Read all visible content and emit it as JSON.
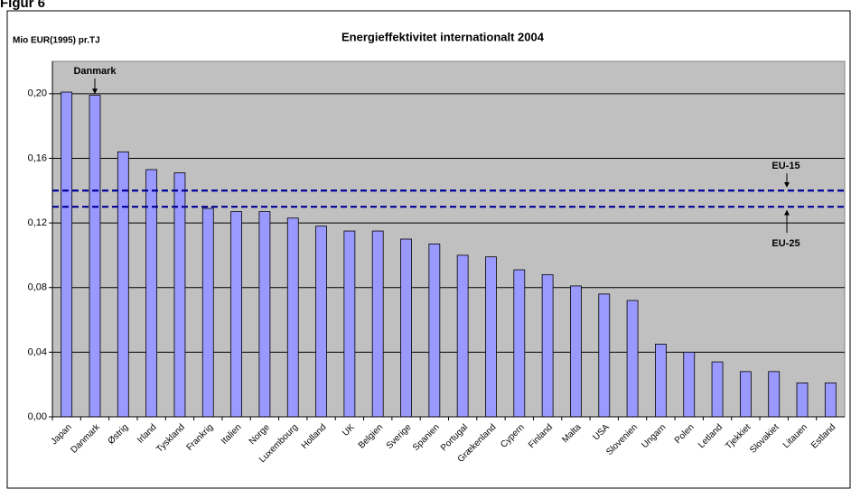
{
  "header": {
    "title": "Figur 6"
  },
  "chart_data": {
    "type": "bar",
    "title": "Energieffektivitet internationalt 2004",
    "y_axis_label": "Mio EUR(1995) pr.TJ",
    "categories": [
      "Japan",
      "Danmark",
      "Østrig",
      "Irland",
      "Tyskland",
      "Frankrig",
      "Italien",
      "Norge",
      "Luxembourg",
      "Holland",
      "UK",
      "Belgien",
      "Sverige",
      "Spanien",
      "Portugal",
      "Grækenland",
      "Cypern",
      "Finland",
      "Malta",
      "USA",
      "Slovenien",
      "Ungarn",
      "Polen",
      "Letland",
      "Tjekkiet",
      "Slovakiet",
      "Litauen",
      "Estland"
    ],
    "values": [
      0.201,
      0.199,
      0.164,
      0.153,
      0.151,
      0.129,
      0.127,
      0.127,
      0.123,
      0.118,
      0.115,
      0.115,
      0.11,
      0.107,
      0.1,
      0.099,
      0.091,
      0.088,
      0.081,
      0.076,
      0.072,
      0.045,
      0.04,
      0.034,
      0.028,
      0.028,
      0.021,
      0.021
    ],
    "color": "#9999ff",
    "ylim": [
      0,
      0.22
    ],
    "yticks": [
      {
        "value": 0,
        "label": "0,00"
      },
      {
        "value": 0.04,
        "label": "0,04"
      },
      {
        "value": 0.08,
        "label": "0,08"
      },
      {
        "value": 0.12,
        "label": "0,12"
      },
      {
        "value": 0.16,
        "label": "0,16"
      },
      {
        "value": 0.2,
        "label": "0,20"
      }
    ],
    "grid": true,
    "reference_lines": [
      {
        "label": "EU-15",
        "value": 0.14,
        "color": "#000099"
      },
      {
        "label": "EU-25",
        "value": 0.13,
        "color": "#000099"
      }
    ],
    "annotations": [
      {
        "text": "Danmark"
      }
    ]
  }
}
